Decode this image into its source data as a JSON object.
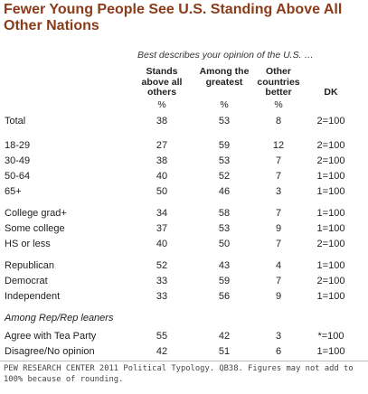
{
  "title": "Fewer Young People See U.S. Standing Above All Other Nations",
  "subtitle": "Best describes your opinion of the U.S. …",
  "columns": [
    {
      "header": "Stands above all others",
      "unit": "%"
    },
    {
      "header": "Among the greatest",
      "unit": "%"
    },
    {
      "header": "Other countries better",
      "unit": "%"
    },
    {
      "header": "DK",
      "unit": ""
    }
  ],
  "groups": [
    {
      "rows": [
        {
          "label": "Total",
          "values": [
            "38",
            "53",
            "8",
            "2=100"
          ]
        }
      ]
    },
    {
      "rows": [
        {
          "label": "18-29",
          "values": [
            "27",
            "59",
            "12",
            "2=100"
          ]
        },
        {
          "label": "30-49",
          "values": [
            "38",
            "53",
            "7",
            "2=100"
          ]
        },
        {
          "label": "50-64",
          "values": [
            "40",
            "52",
            "7",
            "1=100"
          ]
        },
        {
          "label": "65+",
          "values": [
            "50",
            "46",
            "3",
            "1=100"
          ]
        }
      ]
    },
    {
      "rows": [
        {
          "label": "College grad+",
          "values": [
            "34",
            "58",
            "7",
            "1=100"
          ]
        },
        {
          "label": "Some college",
          "values": [
            "37",
            "53",
            "9",
            "1=100"
          ]
        },
        {
          "label": "HS or less",
          "values": [
            "40",
            "50",
            "7",
            "2=100"
          ]
        }
      ]
    },
    {
      "rows": [
        {
          "label": "Republican",
          "values": [
            "52",
            "43",
            "4",
            "1=100"
          ]
        },
        {
          "label": "Democrat",
          "values": [
            "33",
            "59",
            "7",
            "2=100"
          ]
        },
        {
          "label": "Independent",
          "values": [
            "33",
            "56",
            "9",
            "1=100"
          ]
        }
      ]
    },
    {
      "note": "Among Rep/Rep leaners",
      "rows": [
        {
          "label": "Agree with Tea Party",
          "values": [
            "55",
            "42",
            "3",
            "*=100"
          ]
        },
        {
          "label": "Disagree/No opinion",
          "values": [
            "42",
            "51",
            "6",
            "1=100"
          ]
        }
      ]
    }
  ],
  "footnote": "PEW RESEARCH CENTER 2011 Political Typology. QB38. Figures may not add to 100% because of rounding.",
  "colors": {
    "title": "#8a3c1a",
    "text": "#222222",
    "rule": "#bbbbbb"
  }
}
